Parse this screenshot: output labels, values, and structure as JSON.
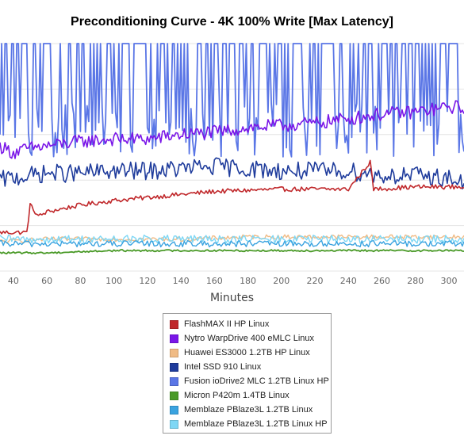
{
  "chart_data": {
    "type": "line",
    "title": "Preconditioning Curve - 4K 100% Write [Max Latency]",
    "xlabel": "Minutes",
    "ylabel": "",
    "xlim": [
      32,
      309
    ],
    "ylim": [
      0,
      100
    ],
    "x_ticks": [
      40,
      60,
      80,
      100,
      120,
      140,
      160,
      180,
      200,
      220,
      240,
      260,
      280,
      300
    ],
    "grid": true,
    "legend_position": "bottom",
    "series": [
      {
        "name": "FlashMAX II HP Linux",
        "color": "#c0282b",
        "x": [
          32,
          48,
          50,
          55,
          60,
          80,
          100,
          130,
          160,
          200,
          240,
          253,
          255,
          280,
          300,
          309
        ],
        "y": [
          17,
          17,
          29,
          24,
          26,
          29,
          31,
          33,
          35,
          36,
          36,
          48,
          36,
          37,
          37,
          37
        ]
      },
      {
        "name": "Nytro WarpDrive 400 eMLC Linux",
        "color": "#7a16e8",
        "x": [
          32,
          40,
          50,
          60,
          80,
          100,
          120,
          140,
          160,
          180,
          200,
          220,
          240,
          260,
          280,
          300,
          309
        ],
        "y": [
          55,
          52,
          54,
          55,
          57,
          58,
          58,
          60,
          61,
          63,
          64,
          65,
          67,
          69,
          70,
          72,
          72
        ]
      },
      {
        "name": "Huawei ES3000 1.2TB HP Linux",
        "color": "#f0bb85",
        "x": [
          32,
          60,
          100,
          140,
          180,
          220,
          260,
          300,
          309
        ],
        "y": [
          13,
          14,
          14,
          14,
          15,
          15,
          15,
          15,
          15
        ]
      },
      {
        "name": "Intel SSD 910 Linux",
        "color": "#1f3c9c",
        "x": [
          32,
          40,
          60,
          80,
          100,
          120,
          140,
          160,
          180,
          200,
          220,
          240,
          260,
          280,
          300,
          309
        ],
        "y": [
          40,
          41,
          43,
          43,
          44,
          44,
          45,
          46,
          45,
          44,
          44,
          44,
          42,
          42,
          41,
          38
        ]
      },
      {
        "name": "Fusion ioDrive2 MLC 1.2TB Linux HP",
        "color": "#5a76e6",
        "x": [
          32,
          60,
          100,
          140,
          180,
          220,
          260,
          300,
          309
        ],
        "y": [
          100,
          100,
          100,
          100,
          100,
          100,
          100,
          100,
          100
        ]
      },
      {
        "name": "Micron P420m 1.4TB Linux",
        "color": "#4a9a28",
        "x": [
          32,
          60,
          100,
          140,
          180,
          220,
          260,
          300,
          309
        ],
        "y": [
          8,
          8,
          9,
          9,
          9,
          9,
          9,
          9,
          9
        ]
      },
      {
        "name": "Memblaze PBlaze3L 1.2TB Linux",
        "color": "#3aa3e0",
        "x": [
          32,
          60,
          100,
          140,
          180,
          220,
          260,
          300,
          309
        ],
        "y": [
          12,
          12,
          12,
          12,
          12,
          12,
          12,
          12,
          12
        ]
      },
      {
        "name": "Memblaze PBlaze3L 1.2TB Linux HP",
        "color": "#7ed7f5",
        "x": [
          32,
          60,
          100,
          140,
          180,
          220,
          260,
          300,
          309
        ],
        "y": [
          14,
          14,
          14,
          14,
          14,
          14,
          14,
          14,
          14
        ]
      }
    ]
  }
}
